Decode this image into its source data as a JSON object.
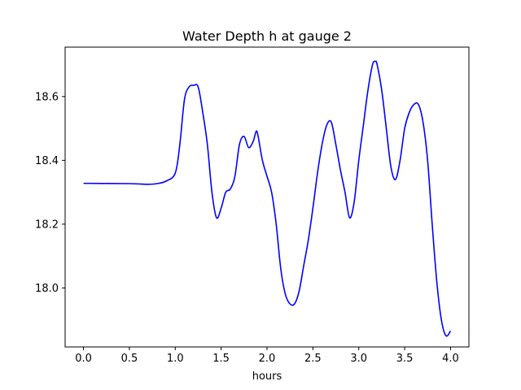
{
  "chart_data": {
    "type": "line",
    "title": "Water Depth h at gauge 2",
    "xlabel": "hours",
    "ylabel": "",
    "xlim": [
      -0.2,
      4.2
    ],
    "ylim": [
      17.815,
      18.755
    ],
    "x_ticks": [
      0.0,
      0.5,
      1.0,
      1.5,
      2.0,
      2.5,
      3.0,
      3.5,
      4.0
    ],
    "x_tick_labels": [
      "0.0",
      "0.5",
      "1.0",
      "1.5",
      "2.0",
      "2.5",
      "3.0",
      "3.5",
      "4.0"
    ],
    "y_ticks": [
      18.0,
      18.2,
      18.4,
      18.6
    ],
    "y_tick_labels": [
      "18.0",
      "18.2",
      "18.4",
      "18.6"
    ],
    "grid": false,
    "line_color": "#0000ff",
    "series": [
      {
        "x": [
          0.0,
          0.5,
          0.7,
          0.8,
          0.9,
          1.0,
          1.05,
          1.1,
          1.15,
          1.2,
          1.25,
          1.3,
          1.35,
          1.4,
          1.45,
          1.5,
          1.55,
          1.6,
          1.65,
          1.7,
          1.75,
          1.8,
          1.85,
          1.88,
          1.9,
          1.95,
          2.0,
          2.05,
          2.1,
          2.15,
          2.2,
          2.25,
          2.3,
          2.35,
          2.4,
          2.45,
          2.5,
          2.55,
          2.6,
          2.65,
          2.7,
          2.75,
          2.8,
          2.85,
          2.9,
          2.95,
          3.0,
          3.05,
          3.1,
          3.15,
          3.18,
          3.2,
          3.25,
          3.3,
          3.35,
          3.4,
          3.45,
          3.5,
          3.55,
          3.6,
          3.65,
          3.7,
          3.75,
          3.8,
          3.85,
          3.9,
          3.95,
          4.0
        ],
        "y": [
          18.328,
          18.327,
          18.325,
          18.327,
          18.335,
          18.36,
          18.45,
          18.59,
          18.63,
          18.635,
          18.63,
          18.55,
          18.45,
          18.3,
          18.22,
          18.25,
          18.3,
          18.31,
          18.35,
          18.45,
          18.475,
          18.44,
          18.46,
          18.49,
          18.48,
          18.4,
          18.35,
          18.3,
          18.2,
          18.06,
          17.98,
          17.95,
          17.95,
          17.99,
          18.07,
          18.15,
          18.25,
          18.36,
          18.45,
          18.51,
          18.52,
          18.45,
          18.37,
          18.3,
          18.22,
          18.27,
          18.4,
          18.51,
          18.62,
          18.7,
          18.71,
          18.7,
          18.62,
          18.5,
          18.38,
          18.34,
          18.4,
          18.5,
          18.55,
          18.575,
          18.575,
          18.52,
          18.4,
          18.2,
          18.02,
          17.9,
          17.85,
          17.865
        ]
      }
    ]
  }
}
